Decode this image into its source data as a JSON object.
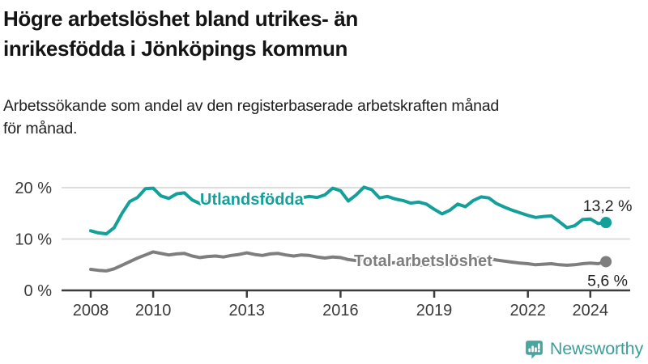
{
  "header": {
    "title_lines": [
      "Högre arbetslöshet bland utrikes- än",
      "inrikesfödda i Jönköpings kommun"
    ],
    "subtitle_lines": [
      "Arbetssökande som andel av den registerbaserade arbetskraften månad",
      "för månad."
    ]
  },
  "chart_data": {
    "type": "line",
    "title": "Högre arbetslöshet bland utrikes- än inrikesfödda i Jönköpings kommun",
    "subtitle": "Arbetssökande som andel av den registerbaserade arbetskraften månad för månad.",
    "xlabel": "",
    "ylabel": "",
    "grid": "horizontal",
    "x_start": 2008,
    "x_step": 0.25,
    "x_ticks": [
      2008,
      2010,
      2013,
      2016,
      2019,
      2022,
      2024
    ],
    "y_ticks": [
      0,
      10,
      20
    ],
    "y_tick_suffix": " %",
    "ylim": [
      0,
      22
    ],
    "xlim": [
      2007.1,
      2025.3
    ],
    "series": [
      {
        "name": "Utlandsfödda",
        "color": "#14a09a",
        "end_value": 13.2,
        "end_label": "13,2 %",
        "values": [
          11.6,
          11.2,
          11.0,
          12.2,
          15.0,
          17.3,
          18.1,
          19.8,
          19.9,
          18.4,
          17.9,
          18.8,
          19.0,
          17.6,
          16.9,
          17.3,
          17.4,
          17.0,
          17.2,
          17.5,
          17.3,
          17.1,
          17.4,
          17.8,
          17.6,
          17.9,
          18.2,
          18.0,
          18.3,
          18.1,
          18.6,
          19.9,
          19.4,
          17.4,
          18.6,
          20.1,
          19.6,
          18.0,
          18.3,
          17.8,
          17.5,
          17.0,
          17.2,
          16.8,
          15.8,
          14.9,
          15.6,
          16.8,
          16.3,
          17.5,
          18.2,
          18.0,
          16.9,
          16.2,
          15.6,
          15.1,
          14.6,
          14.2,
          14.4,
          14.5,
          13.4,
          12.2,
          12.6,
          13.8,
          13.9,
          13.0,
          13.2
        ]
      },
      {
        "name": "Total arbetslöshet",
        "color": "#7e7e7e",
        "end_value": 5.6,
        "end_label": "5,6 %",
        "values": [
          4.1,
          3.9,
          3.8,
          4.2,
          4.9,
          5.6,
          6.3,
          6.9,
          7.5,
          7.2,
          6.9,
          7.1,
          7.2,
          6.7,
          6.4,
          6.6,
          6.7,
          6.5,
          6.8,
          7.0,
          7.3,
          7.0,
          6.8,
          7.1,
          7.2,
          6.9,
          6.7,
          6.9,
          6.8,
          6.5,
          6.3,
          6.5,
          6.4,
          6.0,
          5.8,
          5.9,
          5.8,
          5.5,
          5.3,
          5.4,
          5.2,
          5.0,
          4.9,
          5.0,
          4.9,
          4.8,
          5.0,
          5.2,
          5.4,
          6.2,
          6.4,
          6.2,
          5.9,
          5.7,
          5.5,
          5.3,
          5.2,
          5.0,
          5.1,
          5.2,
          5.0,
          4.9,
          5.0,
          5.2,
          5.3,
          5.2,
          5.6
        ]
      }
    ]
  },
  "footer": {
    "brand": "Newsworthy",
    "logo_icon": "bar-chart-speech-bubble-icon",
    "brand_color": "#3b9e9b",
    "icon_color": "#4aa5a1",
    "accent_color": "#14a09a"
  }
}
